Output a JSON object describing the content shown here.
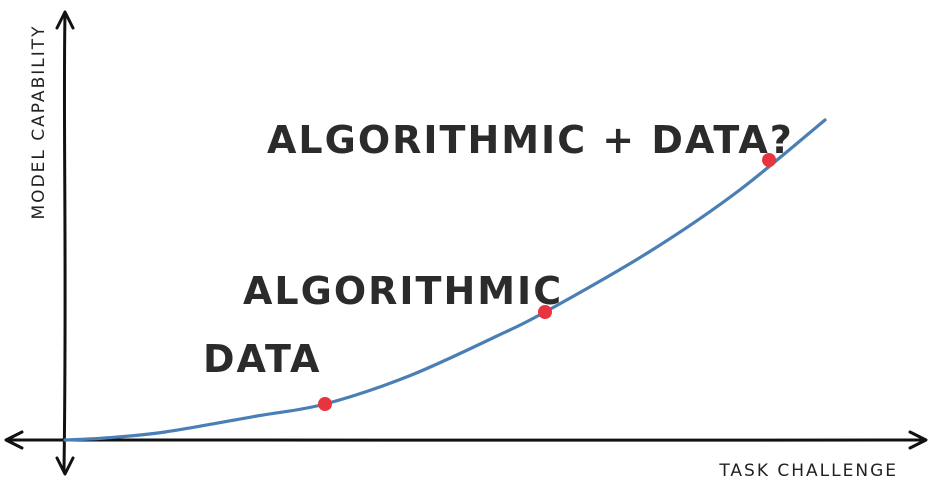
{
  "chart_data": {
    "type": "line",
    "xlabel": "TASK CHALLENGE",
    "ylabel": "MODEL CAPABILITY",
    "xlim": [
      0,
      10
    ],
    "ylim": [
      0,
      10
    ],
    "grid": false,
    "series": [
      {
        "color": "#4a7fb5",
        "x": [
          0,
          0.5,
          1.25,
          2.4,
          3.25,
          4.3,
          5.4,
          6.0,
          7.3,
          8.4,
          9.5
        ],
        "y": [
          0,
          0.05,
          0.2,
          0.6,
          0.9,
          1.6,
          2.6,
          3.2,
          4.7,
          6.2,
          8.0
        ]
      }
    ],
    "points": [
      {
        "label": "DATA",
        "x": 3.25,
        "y": 0.9,
        "color": "#e8343e"
      },
      {
        "label": "ALGORITHMIC",
        "x": 6.0,
        "y": 3.2,
        "color": "#e8343e"
      },
      {
        "label": "ALGORITHMIC + DATA?",
        "x": 8.8,
        "y": 7.0,
        "color": "#e8343e"
      }
    ]
  }
}
